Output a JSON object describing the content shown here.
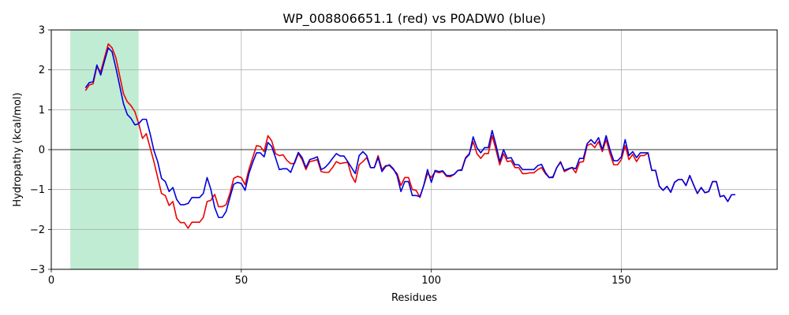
{
  "chart_data": {
    "type": "line",
    "title": "WP_008806651.1 (red) vs P0ADW0 (blue)",
    "xlabel": "Residues",
    "ylabel": "Hydropathy (kcal/mol)",
    "xlim": [
      0,
      191
    ],
    "ylim": [
      -3,
      3
    ],
    "xticks": [
      0,
      50,
      100,
      150
    ],
    "yticks": [
      -3,
      -2,
      -1,
      0,
      1,
      2,
      3
    ],
    "grid": true,
    "zero_line": true,
    "highlight_region": {
      "x_start": 5,
      "x_end": 23,
      "color": "#c0ecd3"
    },
    "series": [
      {
        "color": "#ee0000",
        "x": [
          9,
          10,
          11,
          12,
          13,
          14,
          15,
          16,
          17,
          18,
          19,
          20,
          21,
          22,
          23,
          24,
          25,
          26,
          27,
          28,
          29,
          30,
          31,
          32,
          33,
          34,
          35,
          36,
          37,
          38,
          39,
          40,
          41,
          42,
          43,
          44,
          45,
          46,
          47,
          48,
          49,
          50,
          51,
          52,
          53,
          54,
          55,
          56,
          57,
          58,
          59,
          60,
          61,
          62,
          63,
          64,
          65,
          66,
          67,
          68,
          69,
          70,
          71,
          72,
          73,
          74,
          75,
          76,
          77,
          78,
          79,
          80,
          81,
          82,
          83,
          84,
          85,
          86,
          87,
          88,
          89,
          90,
          91,
          92,
          93,
          94,
          95,
          96,
          97,
          98,
          99,
          100,
          101,
          102,
          103,
          104,
          105,
          106,
          107,
          108,
          109,
          110,
          111,
          112,
          113,
          114,
          115,
          116,
          117,
          118,
          119,
          120,
          121,
          122,
          123,
          124,
          125,
          126,
          127,
          128,
          129,
          130,
          131,
          132,
          133,
          134,
          135,
          136,
          137,
          138,
          139,
          140,
          141,
          142,
          143,
          144,
          145,
          146,
          147,
          148,
          149,
          150,
          151,
          152,
          153,
          154,
          155,
          156,
          157,
          158,
          159,
          160,
          161,
          162,
          163,
          164,
          165,
          166,
          167,
          168,
          169,
          170,
          171,
          172,
          173,
          174,
          175,
          176,
          177,
          178,
          179,
          180
        ],
        "values": [
          1.48,
          1.62,
          1.65,
          2.08,
          1.95,
          2.3,
          2.65,
          2.55,
          2.3,
          1.85,
          1.4,
          1.2,
          1.1,
          0.95,
          0.65,
          0.28,
          0.4,
          0.05,
          -0.3,
          -0.7,
          -1.1,
          -1.15,
          -1.4,
          -1.3,
          -1.72,
          -1.83,
          -1.83,
          -1.97,
          -1.82,
          -1.82,
          -1.82,
          -1.7,
          -1.3,
          -1.27,
          -1.12,
          -1.43,
          -1.43,
          -1.38,
          -1.1,
          -0.72,
          -0.67,
          -0.7,
          -0.88,
          -0.5,
          -0.2,
          0.1,
          0.08,
          -0.05,
          0.35,
          0.22,
          -0.1,
          -0.15,
          -0.13,
          -0.27,
          -0.35,
          -0.35,
          -0.1,
          -0.25,
          -0.5,
          -0.3,
          -0.28,
          -0.25,
          -0.55,
          -0.57,
          -0.57,
          -0.45,
          -0.3,
          -0.35,
          -0.33,
          -0.32,
          -0.65,
          -0.82,
          -0.38,
          -0.3,
          -0.2,
          -0.45,
          -0.45,
          -0.15,
          -0.5,
          -0.4,
          -0.4,
          -0.5,
          -0.6,
          -0.9,
          -0.7,
          -0.7,
          -1.0,
          -1.02,
          -1.2,
          -0.9,
          -0.6,
          -0.7,
          -0.55,
          -0.58,
          -0.55,
          -0.67,
          -0.68,
          -0.62,
          -0.52,
          -0.5,
          -0.2,
          -0.1,
          0.2,
          -0.1,
          -0.22,
          -0.1,
          -0.1,
          0.35,
          0.0,
          -0.38,
          -0.1,
          -0.3,
          -0.28,
          -0.45,
          -0.45,
          -0.6,
          -0.6,
          -0.58,
          -0.58,
          -0.5,
          -0.45,
          -0.6,
          -0.7,
          -0.68,
          -0.45,
          -0.3,
          -0.55,
          -0.5,
          -0.45,
          -0.58,
          -0.32,
          -0.3,
          0.1,
          0.15,
          0.05,
          0.2,
          -0.05,
          0.25,
          -0.1,
          -0.38,
          -0.38,
          -0.25,
          0.1,
          -0.25,
          -0.12,
          -0.3,
          -0.15,
          -0.15,
          -0.08,
          -0.52,
          -0.52,
          -0.92,
          -1.02,
          -0.92,
          -1.07,
          -0.82,
          -0.75,
          -0.75,
          -0.9,
          -0.65,
          -0.88,
          -1.1,
          -0.95,
          -1.08,
          -1.05,
          -0.8,
          -0.8,
          -1.18,
          -1.15,
          -1.3,
          -1.13,
          -1.13
        ]
      },
      {
        "color": "#0000dd",
        "x": [
          9,
          10,
          11,
          12,
          13,
          14,
          15,
          16,
          17,
          18,
          19,
          20,
          21,
          22,
          23,
          24,
          25,
          26,
          27,
          28,
          29,
          30,
          31,
          32,
          33,
          34,
          35,
          36,
          37,
          38,
          39,
          40,
          41,
          42,
          43,
          44,
          45,
          46,
          47,
          48,
          49,
          50,
          51,
          52,
          53,
          54,
          55,
          56,
          57,
          58,
          59,
          60,
          61,
          62,
          63,
          64,
          65,
          66,
          67,
          68,
          69,
          70,
          71,
          72,
          73,
          74,
          75,
          76,
          77,
          78,
          79,
          80,
          81,
          82,
          83,
          84,
          85,
          86,
          87,
          88,
          89,
          90,
          91,
          92,
          93,
          94,
          95,
          96,
          97,
          98,
          99,
          100,
          101,
          102,
          103,
          104,
          105,
          106,
          107,
          108,
          109,
          110,
          111,
          112,
          113,
          114,
          115,
          116,
          117,
          118,
          119,
          120,
          121,
          122,
          123,
          124,
          125,
          126,
          127,
          128,
          129,
          130,
          131,
          132,
          133,
          134,
          135,
          136,
          137,
          138,
          139,
          140,
          141,
          142,
          143,
          144,
          145,
          146,
          147,
          148,
          149,
          150,
          151,
          152,
          153,
          154,
          155,
          156,
          157,
          158,
          159,
          160,
          161,
          162,
          163,
          164,
          165,
          166,
          167,
          168,
          169,
          170,
          171,
          172,
          173,
          174,
          175,
          176,
          177,
          178,
          179,
          180
        ],
        "values": [
          1.55,
          1.68,
          1.7,
          2.12,
          1.87,
          2.22,
          2.55,
          2.45,
          2.05,
          1.6,
          1.15,
          0.88,
          0.78,
          0.62,
          0.65,
          0.76,
          0.76,
          0.4,
          -0.02,
          -0.3,
          -0.72,
          -0.8,
          -1.05,
          -0.95,
          -1.25,
          -1.38,
          -1.38,
          -1.35,
          -1.2,
          -1.2,
          -1.2,
          -1.1,
          -0.7,
          -1.0,
          -1.45,
          -1.7,
          -1.7,
          -1.55,
          -1.2,
          -0.87,
          -0.82,
          -0.85,
          -1.02,
          -0.6,
          -0.32,
          -0.08,
          -0.08,
          -0.18,
          0.18,
          0.08,
          -0.2,
          -0.5,
          -0.48,
          -0.48,
          -0.57,
          -0.32,
          -0.07,
          -0.2,
          -0.45,
          -0.25,
          -0.22,
          -0.18,
          -0.5,
          -0.45,
          -0.35,
          -0.22,
          -0.1,
          -0.16,
          -0.16,
          -0.3,
          -0.45,
          -0.6,
          -0.15,
          -0.05,
          -0.15,
          -0.45,
          -0.45,
          -0.2,
          -0.55,
          -0.42,
          -0.38,
          -0.48,
          -0.65,
          -1.05,
          -0.8,
          -0.8,
          -1.15,
          -1.15,
          -1.18,
          -0.9,
          -0.5,
          -0.82,
          -0.52,
          -0.55,
          -0.53,
          -0.65,
          -0.65,
          -0.62,
          -0.52,
          -0.52,
          -0.22,
          -0.12,
          0.32,
          0.05,
          -0.08,
          0.05,
          0.05,
          0.48,
          0.12,
          -0.3,
          0.0,
          -0.22,
          -0.2,
          -0.38,
          -0.38,
          -0.5,
          -0.5,
          -0.5,
          -0.5,
          -0.4,
          -0.37,
          -0.57,
          -0.7,
          -0.7,
          -0.45,
          -0.32,
          -0.52,
          -0.48,
          -0.45,
          -0.48,
          -0.22,
          -0.22,
          0.15,
          0.25,
          0.15,
          0.3,
          0.0,
          0.35,
          0.0,
          -0.28,
          -0.28,
          -0.18,
          0.25,
          -0.15,
          -0.05,
          -0.2,
          -0.08,
          -0.08,
          -0.08,
          -0.52,
          -0.52,
          -0.92,
          -1.02,
          -0.92,
          -1.07,
          -0.82,
          -0.75,
          -0.75,
          -0.9,
          -0.65,
          -0.88,
          -1.1,
          -0.95,
          -1.08,
          -1.05,
          -0.8,
          -0.8,
          -1.18,
          -1.15,
          -1.3,
          -1.13,
          -1.13
        ]
      }
    ]
  }
}
